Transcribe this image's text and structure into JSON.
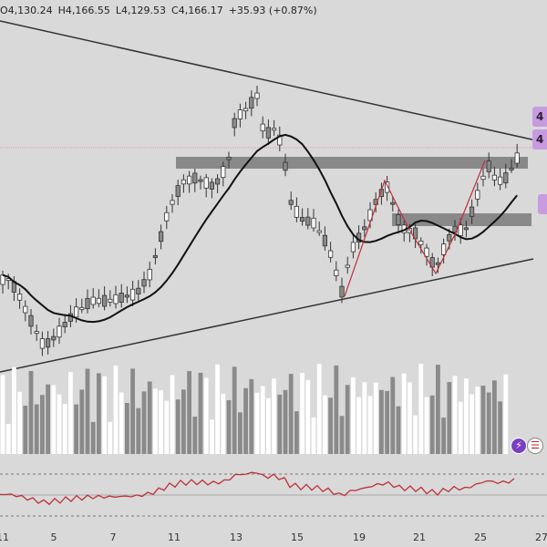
{
  "ohlc": {
    "open": "O4,130.24",
    "high": "H4,166.55",
    "low": "L4,129.53",
    "close": "C4,166.17",
    "change": "+35.93 (+0.87%)"
  },
  "x_ticks": [
    "11",
    "5",
    "7",
    "11",
    "13",
    "15",
    "17",
    "19",
    "21",
    "23",
    "25",
    "27"
  ],
  "badges": [
    "4",
    "4",
    ""
  ],
  "colors": {
    "background": "#d9d9d9",
    "candle": "#8a8a8a",
    "volume_up": "#ffffff",
    "volume_down": "#8a8a8a",
    "ma_line": "#111111",
    "trendline": "#333333",
    "zigzag": "#c0303a",
    "rsi_line": "#c0303a",
    "zone": "#808080",
    "badge": "#c79be0"
  },
  "icons": [
    "lightning-icon",
    "us-flag-icon"
  ],
  "chart_data": {
    "type": "candlestick",
    "panels": [
      "price",
      "volume",
      "rsi"
    ],
    "x_ticks": [
      "11",
      "5",
      "7",
      "11",
      "13",
      "15",
      "17",
      "19",
      "21",
      "23",
      "25",
      "27"
    ],
    "last_bar": {
      "open": 4130.24,
      "high": 4166.55,
      "low": 4129.53,
      "close": 4166.17,
      "change": 35.93,
      "change_pct": 0.87
    },
    "overlays": [
      "moving average",
      "descending trendline",
      "ascending trendline",
      "supply/demand zones",
      "zigzag pattern"
    ],
    "grid": false
  }
}
